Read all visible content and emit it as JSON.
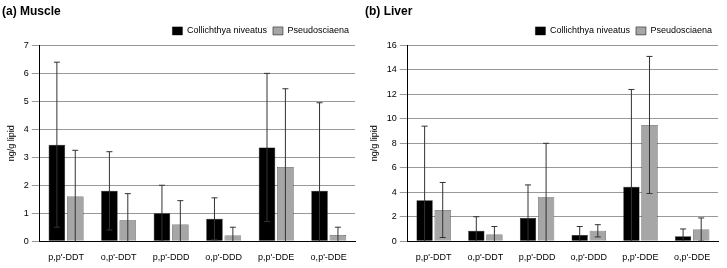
{
  "chart_data": [
    {
      "type": "bar",
      "title": "(a) Muscle",
      "y_label": "ng/g lipid",
      "categories": [
        "p,p'-DDT",
        "o,p'-DDT",
        "p,p'-DDD",
        "o,p'-DDD",
        "p,p'-DDE",
        "o,p'-DDE"
      ],
      "series": [
        {
          "name": "Collichthya niveatus",
          "color": "#000000",
          "values": [
            3.45,
            1.8,
            1.0,
            0.8,
            3.35,
            1.8
          ],
          "errors": [
            2.95,
            1.4,
            1.0,
            0.75,
            2.65,
            3.15
          ]
        },
        {
          "name": "Pseudosciaena",
          "color": "#a6a6a6",
          "values": [
            1.6,
            0.75,
            0.6,
            0.2,
            2.65,
            0.22
          ],
          "errors": [
            1.65,
            0.95,
            0.85,
            0.3,
            2.8,
            0.28
          ]
        }
      ],
      "ylim": [
        0,
        7
      ],
      "yticks": [
        0,
        1,
        2,
        3,
        4,
        5,
        6,
        7
      ],
      "grid": true,
      "legend": "upper right"
    },
    {
      "type": "bar",
      "title": "(b) Liver",
      "y_label": "ng/g lipid",
      "categories": [
        "p,p'-DDT",
        "o,p'-DDT",
        "p,p'-DDD",
        "o,p'-DDD",
        "p,p'-DDE",
        "o,p'-DDE"
      ],
      "series": [
        {
          "name": "Collichthya niveatus",
          "color": "#000000",
          "values": [
            3.35,
            0.85,
            1.9,
            0.5,
            4.45,
            0.4
          ],
          "errors": [
            6.05,
            1.15,
            2.7,
            0.7,
            7.95,
            0.6
          ]
        },
        {
          "name": "Pseudosciaena",
          "color": "#a6a6a6",
          "values": [
            2.55,
            0.55,
            3.6,
            0.85,
            9.5,
            0.95
          ],
          "errors": [
            2.25,
            0.65,
            4.4,
            0.5,
            5.6,
            0.95
          ]
        }
      ],
      "ylim": [
        0,
        16
      ],
      "yticks": [
        0,
        2,
        4,
        6,
        8,
        10,
        12,
        14,
        16
      ],
      "grid": true,
      "legend": "upper right"
    }
  ]
}
